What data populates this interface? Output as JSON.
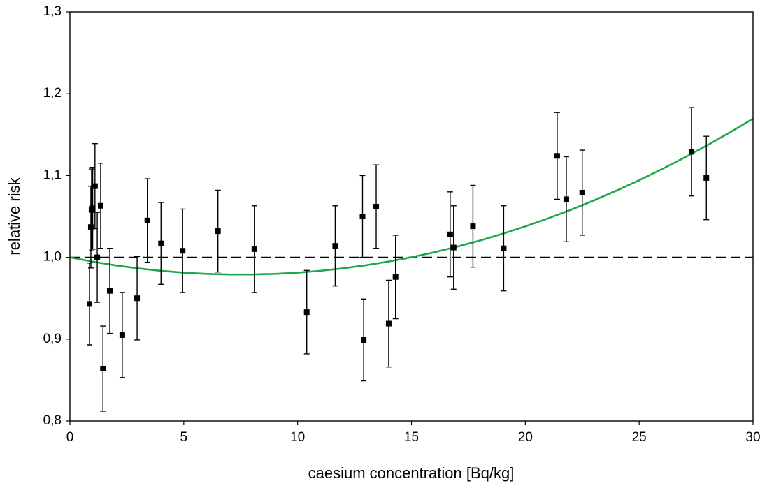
{
  "chart_data": {
    "type": "scatter",
    "xlabel": "caesium concentration [Bq/kg]",
    "ylabel": "relative risk",
    "xlim": [
      0,
      30
    ],
    "ylim": [
      0.8,
      1.3
    ],
    "xticks": [
      0,
      5,
      10,
      15,
      20,
      25,
      30
    ],
    "yticks": [
      {
        "value": 0.8,
        "label": "0,8"
      },
      {
        "value": 0.9,
        "label": "0,9"
      },
      {
        "value": 1.0,
        "label": "1,0"
      },
      {
        "value": 1.1,
        "label": "1,1"
      },
      {
        "value": 1.2,
        "label": "1,2"
      },
      {
        "value": 1.3,
        "label": "1,3"
      }
    ],
    "series": [
      {
        "color": "#000000",
        "x": [
          0.86,
          0.92,
          0.95,
          1.0,
          1.1,
          1.2,
          1.35,
          1.45,
          1.75,
          2.3,
          2.95,
          3.4,
          4.0,
          4.95,
          6.5,
          8.1,
          10.4,
          11.65,
          12.85,
          12.9,
          13.45,
          14.0,
          14.3,
          16.7,
          16.85,
          17.7,
          19.05,
          21.4,
          21.8,
          22.5,
          27.3,
          27.95
        ],
        "values": [
          0.943,
          1.037,
          1.058,
          1.06,
          1.087,
          1.0,
          1.063,
          0.864,
          0.959,
          0.905,
          0.95,
          1.045,
          1.017,
          1.008,
          1.032,
          1.01,
          0.933,
          1.014,
          1.05,
          0.899,
          1.062,
          0.919,
          0.976,
          1.028,
          1.012,
          1.038,
          1.011,
          1.124,
          1.071,
          1.079,
          1.129,
          1.097
        ],
        "errors": [
          0.05,
          0.05,
          0.05,
          0.05,
          0.052,
          0.055,
          0.052,
          0.052,
          0.052,
          0.052,
          0.051,
          0.051,
          0.05,
          0.051,
          0.05,
          0.053,
          0.051,
          0.049,
          0.05,
          0.05,
          0.051,
          0.053,
          0.051,
          0.052,
          0.051,
          0.05,
          0.052,
          0.053,
          0.052,
          0.052,
          0.054,
          0.051
        ]
      }
    ],
    "fit": {
      "color": "#1aa84a",
      "x": [
        0,
        1,
        2,
        3,
        4,
        5,
        6,
        7,
        8,
        9,
        10,
        11,
        12,
        13,
        14,
        15,
        16,
        17,
        18,
        19,
        20,
        21,
        22,
        23,
        24,
        25,
        26,
        27,
        28,
        29,
        30
      ],
      "values": [
        1.0,
        0.99475,
        0.99024,
        0.98649,
        0.9835,
        0.98125,
        0.97976,
        0.97901,
        0.97902,
        0.97979,
        0.9813,
        0.98357,
        0.98658,
        0.99035,
        0.99488,
        1.00015,
        1.00618,
        1.01295,
        1.02048,
        1.02877,
        1.0378,
        1.04759,
        1.05812,
        1.06941,
        1.08146,
        1.09425,
        1.1078,
        1.12209,
        1.13714,
        1.15295,
        1.1695
      ]
    },
    "reference_line": {
      "value": 1.0,
      "color": "#000000",
      "dashed": true
    }
  }
}
